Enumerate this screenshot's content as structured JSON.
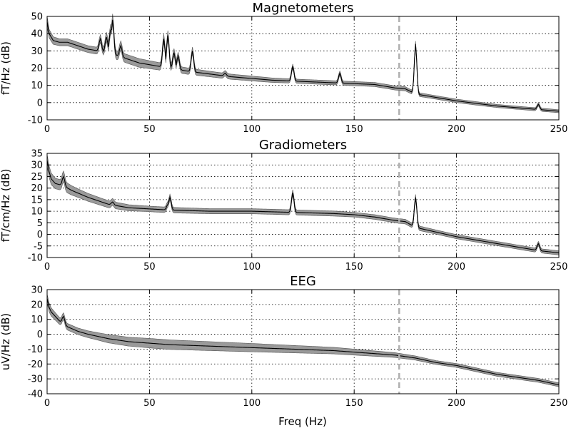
{
  "figure": {
    "xlabel": "Freq (Hz)",
    "colors": {
      "band_fill": "#9a9a9a",
      "mean_line": "#000000",
      "marker_line": "#b0b0b0"
    }
  },
  "chart_data": [
    {
      "type": "area",
      "title": "Magnetometers",
      "ylabel": "fT/Hz (dB)",
      "xlim": [
        0,
        250
      ],
      "ylim": [
        -10,
        50
      ],
      "xticks": [
        0,
        50,
        100,
        150,
        200,
        250
      ],
      "yticks": [
        -10,
        0,
        10,
        20,
        30,
        40,
        50
      ],
      "grid": true,
      "vline_x": 172,
      "series": [
        {
          "x": [
            0,
            1,
            3,
            6,
            10,
            15,
            20,
            25,
            30,
            35,
            40,
            45,
            50,
            60,
            70,
            80,
            90,
            100,
            110,
            120,
            130,
            140,
            150,
            160,
            170,
            175,
            180,
            190,
            200,
            210,
            220,
            230,
            240,
            250
          ],
          "mean": [
            47,
            40,
            36,
            35,
            35,
            33,
            31,
            30,
            29,
            27,
            25,
            23,
            22,
            20,
            18,
            16.5,
            15,
            14,
            13,
            12.5,
            12,
            11.5,
            11,
            10.5,
            8.5,
            8,
            5,
            3,
            1,
            -0.5,
            -2,
            -3,
            -4,
            -5
          ],
          "spread": [
            3,
            2.5,
            2.2,
            2,
            2,
            2,
            2,
            2,
            2.5,
            2.5,
            2.5,
            2.5,
            2.3,
            2,
            1.8,
            1.6,
            1.5,
            1.4,
            1.3,
            1.2,
            1.2,
            1.2,
            1.2,
            1.2,
            1.2,
            1.2,
            1.1,
            1,
            1,
            1,
            0.9,
            0.9,
            0.9,
            0.9
          ],
          "peaks": [
            {
              "x": 26,
              "y": 37
            },
            {
              "x": 29,
              "y": 38
            },
            {
              "x": 31,
              "y": 42
            },
            {
              "x": 32,
              "y": 48
            },
            {
              "x": 36,
              "y": 33
            },
            {
              "x": 57,
              "y": 37
            },
            {
              "x": 59,
              "y": 39
            },
            {
              "x": 62,
              "y": 29
            },
            {
              "x": 64,
              "y": 27
            },
            {
              "x": 71,
              "y": 30
            },
            {
              "x": 87,
              "y": 17
            },
            {
              "x": 120,
              "y": 21
            },
            {
              "x": 143,
              "y": 17
            },
            {
              "x": 180,
              "y": 34
            },
            {
              "x": 240,
              "y": -1
            }
          ]
        }
      ]
    },
    {
      "type": "area",
      "title": "Gradiometers",
      "ylabel": "fT/cm/Hz (dB)",
      "xlim": [
        0,
        250
      ],
      "ylim": [
        -10,
        35
      ],
      "xticks": [
        0,
        50,
        100,
        150,
        200,
        250
      ],
      "yticks": [
        -10,
        -5,
        0,
        5,
        10,
        15,
        20,
        25,
        30,
        35
      ],
      "grid": true,
      "vline_x": 172,
      "series": [
        {
          "x": [
            0,
            1,
            2,
            4,
            8,
            12,
            16,
            20,
            25,
            30,
            40,
            50,
            60,
            80,
            100,
            120,
            140,
            150,
            160,
            170,
            175,
            180,
            190,
            200,
            210,
            220,
            230,
            240,
            250
          ],
          "mean": [
            32,
            27,
            24,
            22,
            21,
            19,
            17.5,
            16,
            14.5,
            13,
            11.5,
            11,
            10.5,
            10,
            10,
            9.5,
            9,
            8.5,
            7.5,
            6,
            5.5,
            3,
            1,
            -1,
            -2.5,
            -4,
            -5.5,
            -7,
            -8
          ],
          "spread": [
            2.5,
            2.5,
            2.5,
            2.3,
            2.2,
            2,
            1.8,
            1.7,
            1.6,
            1.5,
            1.3,
            1.2,
            1.2,
            1.1,
            1.1,
            1.1,
            1.1,
            1,
            1,
            1,
            1,
            1,
            0.9,
            0.9,
            0.9,
            0.9,
            0.9,
            0.9,
            0.9
          ],
          "peaks": [
            {
              "x": 8,
              "y": 25
            },
            {
              "x": 32,
              "y": 14
            },
            {
              "x": 59,
              "y": 13
            },
            {
              "x": 60,
              "y": 16
            },
            {
              "x": 120,
              "y": 18
            },
            {
              "x": 180,
              "y": 16
            },
            {
              "x": 240,
              "y": -4
            }
          ]
        }
      ]
    },
    {
      "type": "area",
      "title": "EEG",
      "ylabel": "uV/Hz (dB)",
      "xlabel": "Freq (Hz)",
      "xlim": [
        0,
        250
      ],
      "ylim": [
        -40,
        30
      ],
      "xticks": [
        0,
        50,
        100,
        150,
        200,
        250
      ],
      "yticks": [
        -40,
        -30,
        -20,
        -10,
        0,
        10,
        20,
        30
      ],
      "grid": true,
      "vline_x": 172,
      "series": [
        {
          "x": [
            0,
            1,
            2,
            4,
            6,
            8,
            10,
            15,
            20,
            25,
            30,
            40,
            50,
            60,
            80,
            100,
            120,
            140,
            150,
            160,
            170,
            175,
            180,
            190,
            200,
            210,
            220,
            230,
            240,
            250
          ],
          "mean": [
            24,
            18,
            15,
            12,
            9,
            7,
            5,
            2,
            0,
            -1.5,
            -3,
            -5,
            -6,
            -7,
            -8,
            -9,
            -10,
            -11,
            -12,
            -13,
            -14,
            -15,
            -16,
            -19,
            -21,
            -24,
            -27,
            -29,
            -31,
            -34
          ],
          "spread": [
            3,
            3,
            2.8,
            2.5,
            2.3,
            2.2,
            2.2,
            2.2,
            2.3,
            2.5,
            2.8,
            3,
            3.2,
            3.2,
            3,
            2.8,
            2.5,
            2.2,
            2,
            1.8,
            1.6,
            1.5,
            1.4,
            1.3,
            1.3,
            1.3,
            1.3,
            1.3,
            1.3,
            1.3
          ],
          "peaks": [
            {
              "x": 8,
              "y": 12
            }
          ]
        }
      ]
    }
  ]
}
